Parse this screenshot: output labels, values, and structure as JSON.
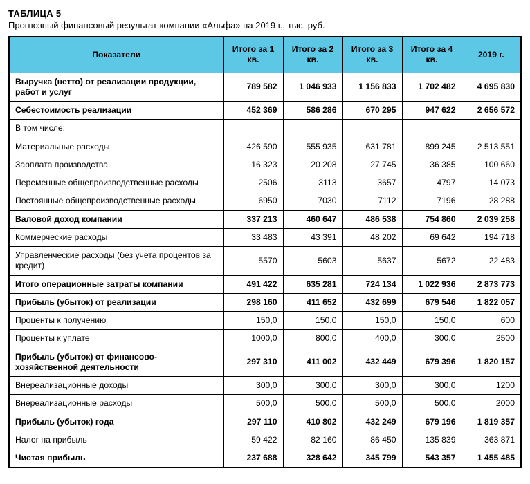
{
  "table": {
    "type": "table",
    "header_bg": "#5dc8e6",
    "border_color": "#000000",
    "title_label": "ТАБЛИЦА 5",
    "subtitle": "Прогнозный финансовый результат компании «Альфа» на 2019 г., тыс. руб.",
    "columns": [
      "Показатели",
      "Итого за 1 кв.",
      "Итого за 2 кв.",
      "Итого за 3 кв.",
      "Итого за 4 кв.",
      "2019 г."
    ],
    "rows": [
      {
        "bold": true,
        "label": "Выручка (нетто) от реализации продукции, работ и услуг",
        "v": [
          "789 582",
          "1 046 933",
          "1 156 833",
          "1 702 482",
          "4 695 830"
        ]
      },
      {
        "bold": true,
        "label": "Себестоимость реализации",
        "v": [
          "452 369",
          "586 286",
          "670 295",
          "947 622",
          "2 656 572"
        ]
      },
      {
        "bold": false,
        "label": "В том числе:",
        "v": [
          "",
          "",
          "",
          "",
          ""
        ]
      },
      {
        "bold": false,
        "label": "Материальные расходы",
        "v": [
          "426 590",
          "555 935",
          "631 781",
          "899 245",
          "2 513 551"
        ]
      },
      {
        "bold": false,
        "label": "Зарплата производства",
        "v": [
          "16 323",
          "20 208",
          "27 745",
          "36 385",
          "100 660"
        ]
      },
      {
        "bold": false,
        "label": "Переменные общепроизводственные расходы",
        "v": [
          "2506",
          "3113",
          "3657",
          "4797",
          "14 073"
        ]
      },
      {
        "bold": false,
        "label": "Постоянные общепроизводственные расходы",
        "v": [
          "6950",
          "7030",
          "7112",
          "7196",
          "28 288"
        ]
      },
      {
        "bold": true,
        "label": "Валовой доход компании",
        "v": [
          "337 213",
          "460 647",
          "486 538",
          "754 860",
          "2 039 258"
        ]
      },
      {
        "bold": false,
        "label": "Коммерческие расходы",
        "v": [
          "33 483",
          "43 391",
          "48 202",
          "69 642",
          "194 718"
        ]
      },
      {
        "bold": false,
        "label": "Управленческие расходы (без учета процентов за кредит)",
        "v": [
          "5570",
          "5603",
          "5637",
          "5672",
          "22 483"
        ]
      },
      {
        "bold": true,
        "label": "Итого операционные затраты компании",
        "v": [
          "491 422",
          "635 281",
          "724 134",
          "1 022 936",
          "2 873 773"
        ]
      },
      {
        "bold": true,
        "label": "Прибыль (убыток) от реализации",
        "v": [
          "298 160",
          "411 652",
          "432 699",
          "679 546",
          "1 822 057"
        ]
      },
      {
        "bold": false,
        "label": "Проценты к получению",
        "v": [
          "150,0",
          "150,0",
          "150,0",
          "150,0",
          "600"
        ]
      },
      {
        "bold": false,
        "label": "Проценты к уплате",
        "v": [
          "1000,0",
          "800,0",
          "400,0",
          "300,0",
          "2500"
        ]
      },
      {
        "bold": true,
        "label": "Прибыль (убыток) от финансово-хозяйственной деятельности",
        "v": [
          "297 310",
          "411 002",
          "432 449",
          "679 396",
          "1 820 157"
        ]
      },
      {
        "bold": false,
        "label": "Внереализационные доходы",
        "v": [
          "300,0",
          "300,0",
          "300,0",
          "300,0",
          "1200"
        ]
      },
      {
        "bold": false,
        "label": "Внереализационные расходы",
        "v": [
          "500,0",
          "500,0",
          "500,0",
          "500,0",
          "2000"
        ]
      },
      {
        "bold": true,
        "label": "Прибыль (убыток) года",
        "v": [
          "297 110",
          "410 802",
          "432 249",
          "679 196",
          "1 819 357"
        ]
      },
      {
        "bold": false,
        "label": "Налог на прибыль",
        "v": [
          "59 422",
          "82 160",
          "86 450",
          "135 839",
          "363 871"
        ]
      },
      {
        "bold": true,
        "label": "Чистая прибыль",
        "v": [
          "237 688",
          "328 642",
          "345 799",
          "543 357",
          "1 455 485"
        ]
      }
    ]
  }
}
